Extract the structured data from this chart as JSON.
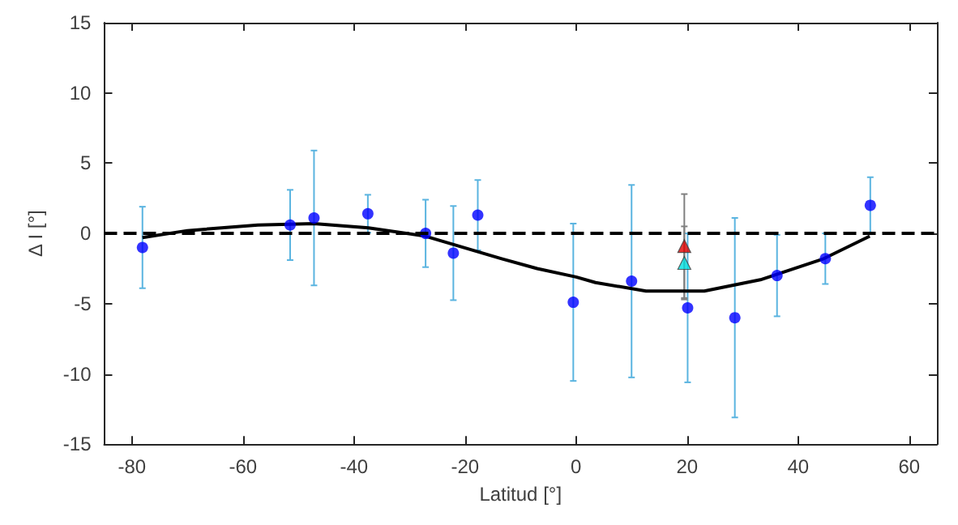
{
  "chart_data": {
    "type": "scatter",
    "xlabel": "Latitud [°]",
    "ylabel": "Δ I [°]",
    "xlim": [
      -85,
      65
    ],
    "xticks": [
      -80,
      -60,
      -40,
      -20,
      0,
      20,
      40,
      60
    ],
    "ylim": [
      -15,
      15
    ],
    "yticks": [
      -15,
      -10,
      -5,
      0,
      5,
      10,
      15
    ],
    "grid": false,
    "series": [
      {
        "color": "#0000ff",
        "marker": "circle",
        "x": [
          -78.1,
          -51.5,
          -47.2,
          -37.5,
          -27.1,
          -22.1,
          -17.7,
          -0.5,
          10,
          20.1,
          28.6,
          36.2,
          44.9,
          53
        ],
        "values": [
          -1.0,
          0.6,
          1.1,
          1.4,
          0.0,
          -1.4,
          1.3,
          -4.9,
          -3.4,
          -5.3,
          -6.0,
          -3.0,
          -1.8,
          2.0
        ],
        "errors": [
          2.9,
          2.5,
          4.8,
          1.35,
          2.4,
          3.35,
          2.5,
          5.6,
          6.85,
          5.3,
          7.1,
          2.9,
          1.8,
          2.0
        ]
      },
      {
        "color": "#e00000",
        "marker": "triangle",
        "x": [
          19.5
        ],
        "values": [
          -0.9
        ],
        "errors": [
          3.7
        ]
      },
      {
        "color": "#00e0e0",
        "marker": "triangle",
        "x": [
          19.5
        ],
        "values": [
          -2.1
        ],
        "errors": [
          2.6
        ]
      },
      {
        "type": "line",
        "color": "#000000",
        "marker": "none",
        "line_style": "solid",
        "x": [
          -78.1,
          -70,
          -57.3,
          -47.2,
          -37.4,
          -27.1,
          -13.4,
          -7,
          0,
          3.5,
          12.6,
          23.1,
          33.2,
          44.6,
          52.9
        ],
        "values": [
          -0.3,
          0.2,
          0.6,
          0.7,
          0.4,
          -0.2,
          -1.8,
          -2.5,
          -3.1,
          -3.5,
          -4.1,
          -4.1,
          -3.3,
          -1.8,
          -0.2
        ]
      }
    ],
    "ref_lines": [
      {
        "axis": "y",
        "value": 0,
        "color": "#000000",
        "line_style": "dashed"
      }
    ]
  }
}
